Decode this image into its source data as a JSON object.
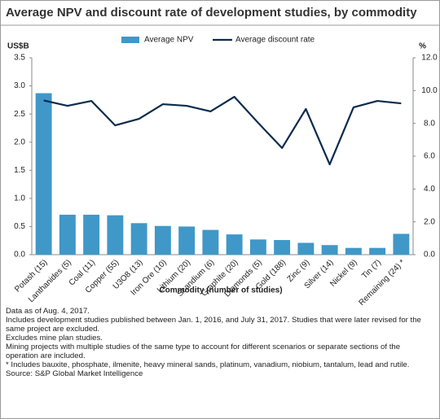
{
  "chart_data": {
    "type": "combo",
    "title": "Average NPV and discount rate of development studies, by commodity",
    "x_label": "Commodity (number of studies)",
    "y_label": "US$B",
    "y2_label": "%",
    "categories": [
      "Potash (15)",
      "Lanthanides (5)",
      "Coal (11)",
      "Copper (55)",
      "U3O8 (13)",
      "Iron Ore (10)",
      "Lithium (20)",
      "Scandium (6)",
      "Graphite (20)",
      "Diamonds (5)",
      "Gold (188)",
      "Zinc (9)",
      "Silver (14)",
      "Nickel (9)",
      "Tin (7)",
      "Remaining (24) *"
    ],
    "series": [
      {
        "name": "Average NPV",
        "type": "bar",
        "color": "#3f98c8",
        "values": [
          2.87,
          0.71,
          0.71,
          0.7,
          0.56,
          0.51,
          0.5,
          0.44,
          0.36,
          0.27,
          0.26,
          0.21,
          0.17,
          0.12,
          0.12,
          0.37
        ]
      },
      {
        "name": "Average discount rate",
        "type": "line",
        "axis": "y2",
        "color": "#0b2b4c",
        "values": [
          9.4,
          9.07,
          9.37,
          7.88,
          8.28,
          9.17,
          9.07,
          8.73,
          9.62,
          8.03,
          6.5,
          8.88,
          5.5,
          8.98,
          9.37,
          9.22
        ]
      }
    ],
    "ylim": [
      0,
      3.5
    ],
    "yticks": [
      {
        "value": 0,
        "label": "0.0"
      },
      0.5,
      {
        "value": 1,
        "label": "1.0"
      },
      1.5,
      {
        "value": 2,
        "label": "2.0"
      },
      2.5,
      {
        "value": 3,
        "label": "3.0"
      },
      3.5
    ],
    "y2lim": [
      0,
      12
    ],
    "y2ticks": [
      {
        "value": 0,
        "label": "0.0"
      },
      {
        "value": 2,
        "label": "2.0"
      },
      {
        "value": 4,
        "label": "4.0"
      },
      {
        "value": 6,
        "label": "6.0"
      },
      {
        "value": 8,
        "label": "8.0"
      },
      {
        "value": 10,
        "label": "10.0"
      },
      {
        "value": 12,
        "label": "12.0"
      }
    ],
    "notes": [
      "Data as of Aug. 4, 2017.",
      "Includes development studies published between Jan. 1, 2016, and July 31, 2017. Studies that were later revised for the same project are excluded.",
      "Excludes mine plan studies.",
      "Mining projects with multiple studies of the same type to account for different scenarios or separate sections of the operation are included.",
      "* Includes bauxite, phosphate, ilmenite, heavy mineral sands, platinum, vanadium, niobium, tantalum, lead and rutile.",
      "Source: S&P Global Market Intelligence"
    ]
  }
}
